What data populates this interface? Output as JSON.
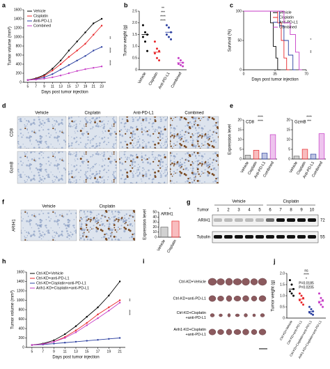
{
  "panel_labels": [
    "a",
    "b",
    "c",
    "d",
    "e",
    "f",
    "g",
    "h",
    "i",
    "j"
  ],
  "chart_data": [
    {
      "type": "line",
      "xlabel": "Days post tumor injection",
      "ylabel": "Tumor volume (mm³)",
      "x": [
        5,
        7,
        9,
        11,
        13,
        15,
        17,
        19,
        21,
        23
      ],
      "xlim": [
        4,
        24
      ],
      "xticks": [
        5,
        7,
        9,
        11,
        13,
        15,
        17,
        19,
        21,
        23
      ],
      "ylim": [
        0,
        1600
      ],
      "yticks": [
        0,
        200,
        400,
        600,
        800,
        1000,
        1200,
        1400,
        1600
      ],
      "legend": "upper left",
      "series": [
        {
          "name": "Vehicle",
          "color": "#000000",
          "values": [
            50,
            90,
            160,
            300,
            480,
            700,
            900,
            1100,
            1300,
            1400
          ]
        },
        {
          "name": "Cisplatin",
          "color": "#e8262a",
          "values": [
            50,
            80,
            140,
            260,
            400,
            560,
            700,
            850,
            1050,
            1250
          ]
        },
        {
          "name": "Anti-PD-L1",
          "color": "#2b3fa0",
          "values": [
            50,
            70,
            110,
            180,
            280,
            380,
            480,
            580,
            700,
            780
          ]
        },
        {
          "name": "Combined",
          "color": "#c63bc6",
          "values": [
            50,
            60,
            80,
            110,
            150,
            200,
            250,
            290,
            320,
            350
          ]
        }
      ],
      "annotations": [
        "**",
        "****",
        "****"
      ]
    },
    {
      "type": "dot",
      "ylabel": "Tumor weight (g)",
      "categories": [
        "Vehicle",
        "Cisplatin",
        "Anti-PD-L1",
        "Combined"
      ],
      "values": [
        1.5,
        0.75,
        1.6,
        0.3
      ],
      "points": [
        [
          1.9,
          1.6,
          1.5,
          1.4,
          1.2,
          0.8
        ],
        [
          1.2,
          0.9,
          0.8,
          0.7,
          0.5,
          0.4
        ],
        [
          1.9,
          1.8,
          1.6,
          1.5,
          1.4,
          1.3
        ],
        [
          0.5,
          0.4,
          0.3,
          0.25,
          0.2,
          0.15
        ]
      ],
      "colors": [
        "#000000",
        "#e8262a",
        "#2b3fa0",
        "#c63bc6"
      ],
      "ylim": [
        0,
        2.5
      ],
      "yticks": [
        0,
        0.5,
        {
          "value": 1,
          "label": "1.0"
        },
        1.5,
        {
          "value": 2,
          "label": "2.0"
        },
        2.5
      ],
      "annotations": [
        "**",
        "***",
        "****",
        "****"
      ]
    },
    {
      "type": "step",
      "xlabel": "Days post tumor injection",
      "ylabel": "Survival (%)",
      "xlim": [
        0,
        70
      ],
      "xticks": [
        0,
        35,
        70
      ],
      "ylim": [
        0,
        100
      ],
      "yticks": [
        0,
        50,
        100
      ],
      "legend": "upper right",
      "series": [
        {
          "name": "Vehicle",
          "color": "#000000",
          "x": [
            0,
            30,
            33,
            36,
            38
          ],
          "values": [
            100,
            80,
            40,
            20,
            0
          ]
        },
        {
          "name": "Cisplatin",
          "color": "#e8262a",
          "x": [
            0,
            38,
            42,
            45,
            48
          ],
          "values": [
            100,
            80,
            50,
            20,
            0
          ]
        },
        {
          "name": "Anti-PD-L1",
          "color": "#2b3fa0",
          "x": [
            0,
            40,
            45,
            50,
            55
          ],
          "values": [
            100,
            75,
            50,
            25,
            0
          ]
        },
        {
          "name": "Combined",
          "color": "#c63bc6",
          "x": [
            0,
            45,
            52,
            58,
            62
          ],
          "values": [
            100,
            80,
            60,
            30,
            0
          ]
        }
      ],
      "annotations": [
        "*",
        "**"
      ]
    },
    {
      "type": "bar",
      "title": "CD8",
      "ylabel": "Expression level",
      "categories": [
        "Vehicle",
        "Cisplatin",
        "Anti-PD-L1",
        "Combined"
      ],
      "values": [
        2,
        4.5,
        3,
        12.5
      ],
      "colors": [
        "#666666",
        "#e8262a",
        "#2b3fa0",
        "#c63bc6"
      ],
      "ylim": [
        0,
        20
      ],
      "yticks": [
        0,
        5,
        10,
        15,
        20
      ],
      "annotations": [
        "****",
        "****"
      ]
    },
    {
      "type": "bar",
      "title": "GzmB",
      "categories": [
        "Vehicle",
        "Cisplatin",
        "Anti-PD-L1",
        "Combined"
      ],
      "values": [
        1.5,
        5,
        2.5,
        13
      ],
      "colors": [
        "#666666",
        "#e8262a",
        "#2b3fa0",
        "#c63bc6"
      ],
      "ylim": [
        0,
        20
      ],
      "yticks": [
        0,
        5,
        10,
        15,
        20
      ],
      "annotations": [
        "****",
        "***"
      ]
    },
    {
      "type": "bar",
      "title": "ARIH1",
      "ylabel": "Expression level",
      "categories": [
        "Vehicle",
        "Cisplatin"
      ],
      "values": [
        20,
        32
      ],
      "colors": [
        "#666666",
        "#e8262a"
      ],
      "ylim": [
        0,
        50
      ],
      "yticks": [
        0,
        10,
        20,
        30,
        40,
        50
      ],
      "annotations": [
        "*"
      ]
    },
    {
      "type": "line",
      "xlabel": "Days post tumor injection",
      "ylabel": "Tumor volume (mm³)",
      "x": [
        5,
        7,
        9,
        11,
        13,
        15,
        17,
        19,
        21
      ],
      "xlim": [
        4,
        22
      ],
      "xticks": [
        5,
        7,
        9,
        11,
        13,
        15,
        17,
        19,
        21
      ],
      "ylim": [
        0,
        1600
      ],
      "yticks": [
        0,
        200,
        400,
        600,
        800,
        1000,
        1200,
        1400,
        1600
      ],
      "legend": "upper left",
      "series": [
        {
          "name": "Ctrl-KD+Vehicle",
          "color": "#000000",
          "values": [
            50,
            80,
            150,
            280,
            450,
            650,
            850,
            1100,
            1400
          ]
        },
        {
          "name": "Ctrl-KD+anti-PD-L1",
          "color": "#e8262a",
          "values": [
            50,
            70,
            120,
            220,
            360,
            520,
            700,
            850,
            1000
          ]
        },
        {
          "name": "Ctrl-KD+Cisplatin+anti-PD-L1",
          "color": "#2b3fa0",
          "values": [
            50,
            60,
            80,
            100,
            120,
            140,
            160,
            180,
            200
          ]
        },
        {
          "name": "Arih1-KD+Cisplatin+anti-PD-L1",
          "color": "#c63bc6",
          "values": [
            50,
            70,
            120,
            200,
            320,
            470,
            620,
            780,
            950
          ]
        }
      ],
      "annotations": [
        "**",
        "****"
      ]
    },
    {
      "type": "dot",
      "ylabel": "Tumor weight (g)",
      "categories": [
        "Ctrl-KD+Vehicle",
        "Ctrl-KD+anti-PD-L1",
        "Ctrl-KD+Cisplatin+anti-PD-L1",
        "Arih1-KD+Cisplatin+anti-PD-L1"
      ],
      "values": [
        1.3,
        0.85,
        0.3,
        0.75
      ],
      "points": [
        [
          1.7,
          1.5,
          1.3,
          1.2,
          1.1,
          1.0
        ],
        [
          1.1,
          1.0,
          0.9,
          0.8,
          0.7,
          0.6
        ],
        [
          0.5,
          0.4,
          0.3,
          0.25,
          0.2,
          0.15
        ],
        [
          1.1,
          0.9,
          0.8,
          0.7,
          0.6,
          0.5
        ]
      ],
      "colors": [
        "#000000",
        "#e8262a",
        "#2b3fa0",
        "#c63bc6"
      ],
      "ylim": [
        0,
        2
      ],
      "yticks": [
        0,
        0.5,
        {
          "value": 1,
          "label": "1.0"
        },
        1.5,
        {
          "value": 2,
          "label": "2.0"
        }
      ],
      "annotations": [
        "ns",
        "****",
        "*",
        "P=0.0185",
        "P=0.0205"
      ]
    }
  ],
  "ihc_d": {
    "columns": [
      "Vehicle",
      "Cisplatin",
      "Anti-PD-L1",
      "Combined"
    ],
    "rows": [
      "CD8",
      "GzmB"
    ]
  },
  "ihc_f": {
    "columns": [
      "Vehicle",
      "Cisplatin"
    ],
    "row": "ARIH1"
  },
  "blot_g": {
    "row_label": "Tumor",
    "lanes": [
      1,
      2,
      3,
      4,
      5,
      6,
      7,
      8,
      9,
      10
    ],
    "groups": [
      "Vehicle",
      "Cisplatin"
    ],
    "bands": [
      "ARIH1",
      "Tubulin"
    ],
    "markers": [
      72,
      55
    ]
  },
  "tumors_i": {
    "rows": [
      [
        "Ctrl-KD+Vehicle"
      ],
      [
        "Ctrl-KD+anti-PD-L1"
      ],
      [
        "Ctrl-KD+Cisplatin",
        "+anti-PD-L1"
      ],
      [
        "Arih1-KD+Cisplatin",
        "+anti-PD-L1"
      ]
    ]
  }
}
